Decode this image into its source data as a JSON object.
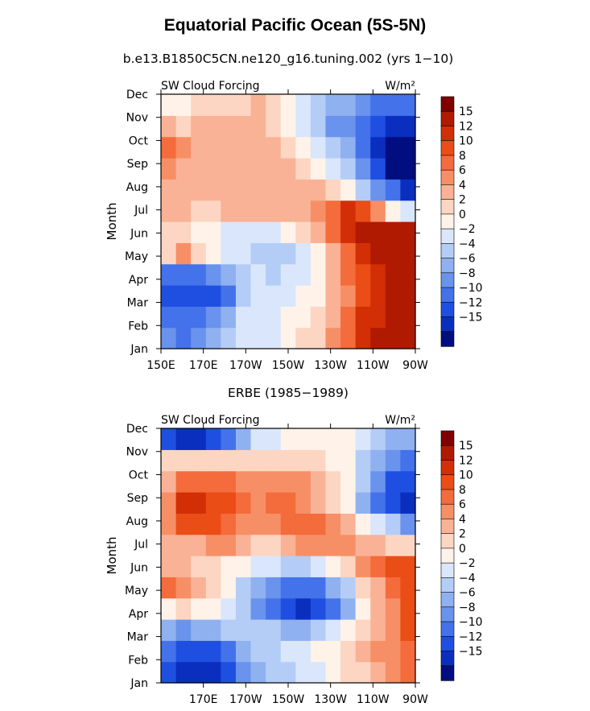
{
  "figure": {
    "title": "Equatorial Pacific Ocean (5S-5N)"
  },
  "colorbar": {
    "labels": [
      "15",
      "12",
      "10",
      "8",
      "6",
      "4",
      "2",
      "0",
      "−2",
      "−4",
      "−6",
      "−8",
      "−10",
      "−12",
      "−15"
    ],
    "colors": [
      "#800000",
      "#b01a00",
      "#d32f06",
      "#ea4d16",
      "#f46b3c",
      "#f78f66",
      "#f9b295",
      "#fcd6c2",
      "#fff2e8",
      "#d9e6fb",
      "#b4cdf6",
      "#8fb1f0",
      "#6993ec",
      "#4372ea",
      "#1f4fe0",
      "#0a2fbf",
      "#000e80"
    ]
  },
  "chart_data": [
    {
      "type": "heatmap",
      "subtitle": "b.e13.B1850C5CN.ne120_g16.tuning.002 (yrs 1−10)",
      "left_label": "SW Cloud Forcing",
      "right_label": "W/m²",
      "ylabel": "Month",
      "xlabel": "",
      "y_ticks": [
        "Jan",
        "Feb",
        "Mar",
        "Apr",
        "May",
        "Jun",
        "Jul",
        "Aug",
        "Sep",
        "Oct",
        "Nov",
        "Dec"
      ],
      "x_ticks": [
        "150E",
        "170E",
        "170W",
        "150W",
        "130W",
        "110W",
        "90W"
      ],
      "x_axis": "longitude, 150E to 90W",
      "grid": "12 months x 17 longitudes (150E to 270E step 7.5 deg)",
      "values": [
        [
          -8,
          -9,
          -7,
          -5,
          -3,
          -1,
          -2,
          -1,
          1,
          2,
          3,
          6,
          9,
          12,
          15,
          17,
          17
        ],
        [
          -9,
          -10,
          -10,
          -8,
          -5,
          -2,
          -1,
          -1,
          0,
          1,
          2,
          5,
          9,
          12,
          14,
          16,
          17
        ],
        [
          -11,
          -12,
          -11,
          -12,
          -10,
          -4,
          -2,
          -2,
          -1,
          0,
          1,
          4,
          7,
          10,
          13,
          16,
          17
        ],
        [
          -9,
          -10,
          -9,
          -7,
          -5,
          -3,
          -2,
          -3,
          -2,
          -1,
          0,
          4,
          8,
          11,
          14,
          17,
          17
        ],
        [
          2,
          6,
          3,
          0,
          -1,
          -2,
          -3,
          -4,
          -3,
          -1,
          1,
          5,
          9,
          13,
          16,
          17,
          17
        ],
        [
          3,
          2,
          1,
          0,
          -1,
          -2,
          -2,
          -1,
          0,
          2,
          4,
          8,
          13,
          15,
          17,
          17,
          17
        ],
        [
          4,
          4,
          3,
          3,
          4,
          4,
          5,
          5,
          5,
          5,
          6,
          9,
          12,
          11,
          6,
          1,
          -2
        ],
        [
          5,
          5,
          5,
          5,
          5,
          5,
          5,
          5,
          5,
          5,
          4,
          3,
          1,
          -3,
          -7,
          -10,
          -13
        ],
        [
          6,
          5,
          5,
          5,
          5,
          5,
          4,
          5,
          4,
          3,
          1,
          -1,
          -4,
          -8,
          -12,
          -16,
          -17
        ],
        [
          9,
          6,
          5,
          5,
          4,
          5,
          4,
          4,
          3,
          1,
          -1,
          -3,
          -6,
          -10,
          -14,
          -17,
          -17
        ],
        [
          4,
          3,
          4,
          4,
          4,
          5,
          5,
          3,
          1,
          -2,
          -4,
          -7,
          -8,
          -9,
          -12,
          -14,
          -15
        ],
        [
          1,
          1,
          2,
          2,
          3,
          3,
          4,
          2,
          0,
          -2,
          -4,
          -5,
          -6,
          -7,
          -9,
          -10,
          -10
        ]
      ],
      "levels": [
        -15,
        -12,
        -10,
        -8,
        -6,
        -4,
        -2,
        0,
        2,
        4,
        6,
        8,
        10,
        12,
        15
      ]
    },
    {
      "type": "heatmap",
      "subtitle": "ERBE (1985−1989)",
      "left_label": "SW Cloud Forcing",
      "right_label": "W/m²",
      "ylabel": "Month",
      "xlabel": "",
      "y_ticks": [
        "Jan",
        "Feb",
        "Mar",
        "Apr",
        "May",
        "Jun",
        "Jul",
        "Aug",
        "Sep",
        "Oct",
        "Nov",
        "Dec"
      ],
      "x_ticks": [
        "170E",
        "170W",
        "150W",
        "130W",
        "110W",
        "90W"
      ],
      "x_axis": "longitude, 150E to 90W",
      "grid": "12 months x 17 longitudes (150E to 270E step 7.5 deg)",
      "values": [
        [
          -12,
          -14,
          -14,
          -13,
          -11,
          -8,
          -6,
          -4,
          -3,
          -2,
          -1,
          0,
          2,
          3,
          5,
          6,
          8
        ],
        [
          -10,
          -12,
          -12,
          -11,
          -9,
          -6,
          -4,
          -3,
          -2,
          -1,
          0,
          1,
          3,
          4,
          6,
          7,
          9
        ],
        [
          -6,
          -7,
          -6,
          -5,
          -4,
          -3,
          -3,
          -4,
          -5,
          -5,
          -4,
          -2,
          1,
          3,
          5,
          7,
          11
        ],
        [
          0,
          2,
          1,
          0,
          -2,
          -4,
          -7,
          -9,
          -12,
          -13,
          -12,
          -9,
          -5,
          0,
          4,
          7,
          10
        ],
        [
          9,
          6,
          4,
          2,
          0,
          -3,
          -5,
          -8,
          -9,
          -10,
          -9,
          -6,
          -3,
          2,
          5,
          9,
          11
        ],
        [
          5,
          4,
          3,
          2,
          1,
          0,
          -1,
          -2,
          -3,
          -3,
          -2,
          0,
          3,
          6,
          9,
          11,
          10
        ],
        [
          4,
          5,
          5,
          6,
          6,
          5,
          3,
          2,
          4,
          6,
          7,
          7,
          6,
          5,
          4,
          3,
          2
        ],
        [
          7,
          11,
          11,
          10,
          9,
          7,
          6,
          7,
          8,
          8,
          8,
          7,
          4,
          1,
          -2,
          -4,
          -7
        ],
        [
          7,
          12,
          13,
          11,
          10,
          8,
          7,
          8,
          8,
          7,
          5,
          3,
          0,
          -5,
          -9,
          -12,
          -14
        ],
        [
          5,
          9,
          9,
          9,
          8,
          6,
          6,
          7,
          7,
          6,
          4,
          2,
          0,
          -4,
          -8,
          -11,
          -12
        ],
        [
          2,
          3,
          3,
          3,
          3,
          3,
          3,
          3,
          3,
          2,
          2,
          1,
          0,
          -3,
          -6,
          -8,
          -9
        ],
        [
          -12,
          -14,
          -14,
          -12,
          -9,
          -5,
          -2,
          -1,
          0,
          1,
          1,
          1,
          0,
          -2,
          -4,
          -5,
          -6
        ]
      ],
      "levels": [
        -15,
        -12,
        -10,
        -8,
        -6,
        -4,
        -2,
        0,
        2,
        4,
        6,
        8,
        10,
        12,
        15
      ]
    }
  ]
}
